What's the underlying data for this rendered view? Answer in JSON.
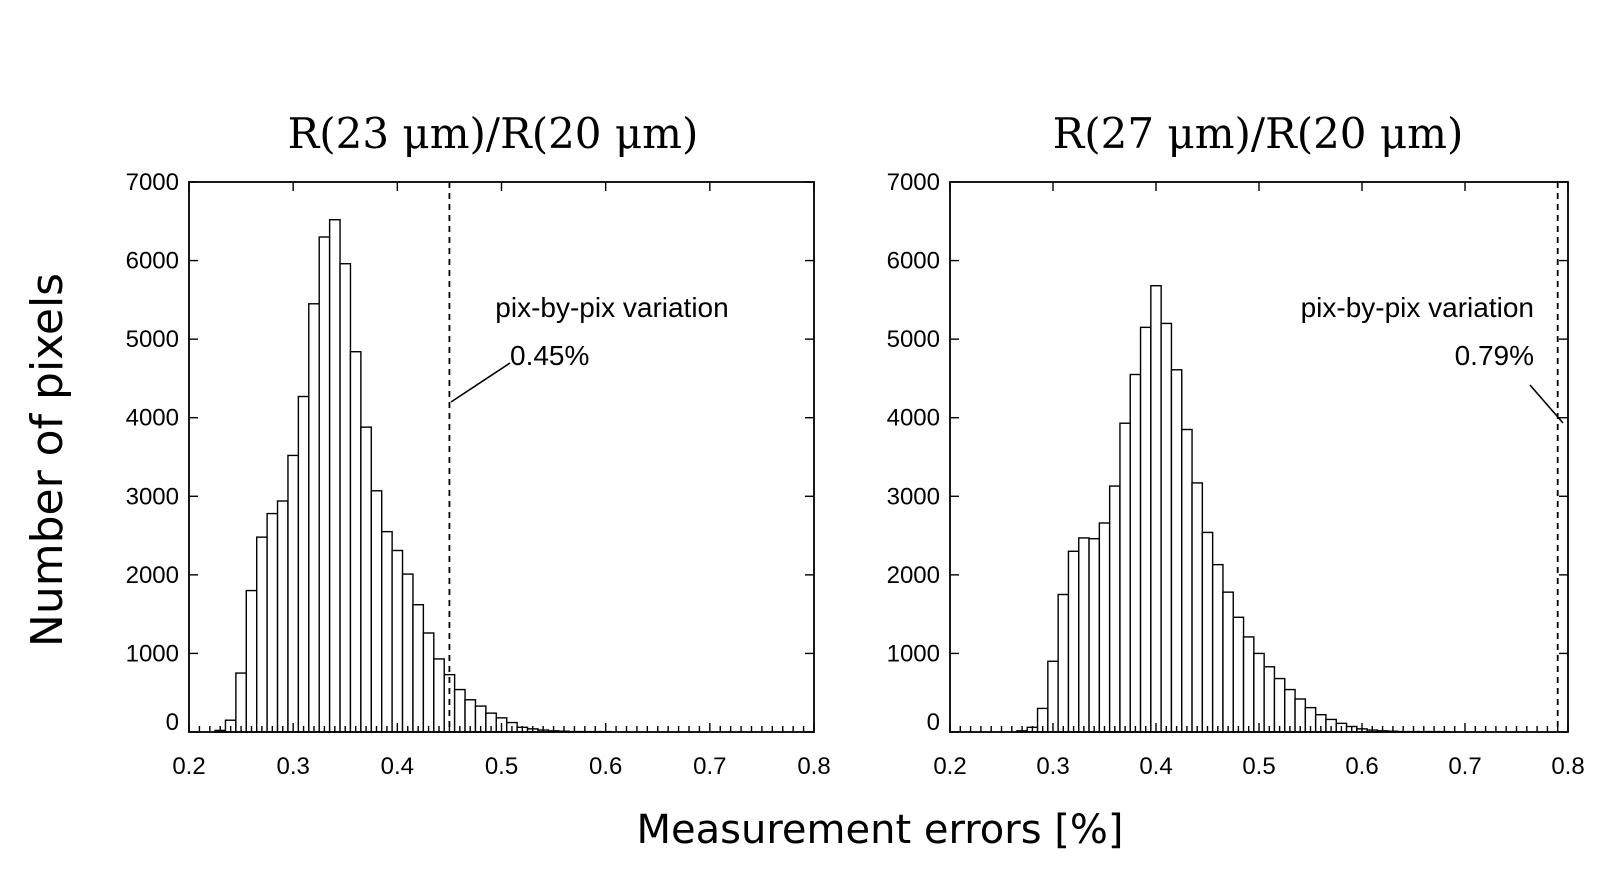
{
  "figure": {
    "ylabel": "Number of pixels",
    "xlabel": "Measurement errors [%]"
  },
  "chart_data": [
    {
      "type": "bar",
      "title": "R(23 μm)/R(20 μm)",
      "xlim": [
        0.2,
        0.8
      ],
      "ylim": [
        0,
        7000
      ],
      "x_ticks": [
        "0.2",
        "0.3",
        "0.4",
        "0.5",
        "0.6",
        "0.7",
        "0.8"
      ],
      "y_ticks": [
        "0",
        "1000",
        "2000",
        "3000",
        "4000",
        "5000",
        "6000",
        "7000"
      ],
      "bin_width": 0.01,
      "x": [
        0.23,
        0.24,
        0.25,
        0.26,
        0.27,
        0.28,
        0.29,
        0.3,
        0.31,
        0.32,
        0.33,
        0.34,
        0.35,
        0.36,
        0.37,
        0.38,
        0.39,
        0.4,
        0.41,
        0.42,
        0.43,
        0.44,
        0.45,
        0.46,
        0.47,
        0.48,
        0.49,
        0.5,
        0.51,
        0.52,
        0.53,
        0.54,
        0.55,
        0.56,
        0.57,
        0.58,
        0.59,
        0.6
      ],
      "values": [
        20,
        150,
        750,
        1800,
        2480,
        2780,
        2940,
        3520,
        4270,
        5450,
        6300,
        6520,
        5960,
        4840,
        3880,
        3070,
        2550,
        2310,
        2010,
        1620,
        1260,
        930,
        730,
        540,
        410,
        330,
        240,
        180,
        120,
        60,
        40,
        25,
        15,
        10,
        5,
        5,
        5,
        5
      ],
      "reference_line": {
        "x": 0.45,
        "label": "pix-by-pix variation",
        "value_label": "0.45%"
      }
    },
    {
      "type": "bar",
      "title": "R(27 μm)/R(20 μm)",
      "xlim": [
        0.2,
        0.8
      ],
      "ylim": [
        0,
        7000
      ],
      "x_ticks": [
        "0.2",
        "0.3",
        "0.4",
        "0.5",
        "0.6",
        "0.7",
        "0.8"
      ],
      "y_ticks": [
        "0",
        "1000",
        "2000",
        "3000",
        "4000",
        "5000",
        "6000",
        "7000"
      ],
      "bin_width": 0.01,
      "x": [
        0.27,
        0.28,
        0.29,
        0.3,
        0.31,
        0.32,
        0.33,
        0.34,
        0.35,
        0.36,
        0.37,
        0.38,
        0.39,
        0.4,
        0.41,
        0.42,
        0.43,
        0.44,
        0.45,
        0.46,
        0.47,
        0.48,
        0.49,
        0.5,
        0.51,
        0.52,
        0.53,
        0.54,
        0.55,
        0.56,
        0.57,
        0.58,
        0.59,
        0.6,
        0.61,
        0.62,
        0.63,
        0.64,
        0.65,
        0.66,
        0.67,
        0.68
      ],
      "values": [
        15,
        60,
        300,
        900,
        1750,
        2300,
        2470,
        2460,
        2660,
        3130,
        3930,
        4550,
        5150,
        5680,
        5200,
        4610,
        3850,
        3170,
        2540,
        2130,
        1780,
        1460,
        1210,
        1000,
        830,
        680,
        540,
        420,
        310,
        220,
        160,
        110,
        70,
        40,
        25,
        15,
        10,
        5,
        5,
        5,
        5,
        5
      ],
      "reference_line": {
        "x": 0.79,
        "label": "pix-by-pix variation",
        "value_label": "0.79%"
      }
    }
  ]
}
